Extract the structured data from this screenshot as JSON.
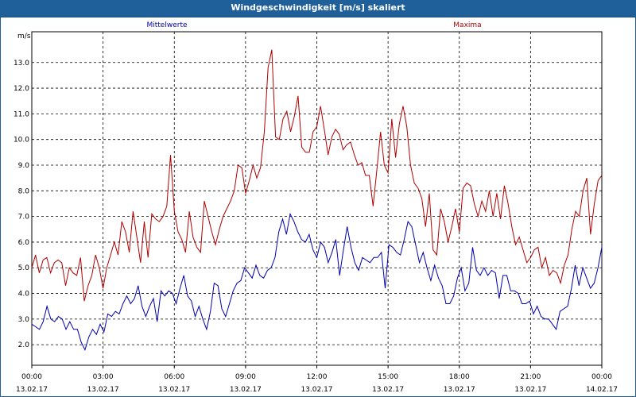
{
  "window": {
    "title": "Windgeschwindigkeit [m/s] skaliert"
  },
  "chart_data": {
    "type": "line",
    "title": "Windgeschwindigkeit [m/s] skaliert",
    "ylabel": "m/s",
    "ylim": [
      1.2,
      14.2
    ],
    "yticks": [
      2.0,
      3.0,
      4.0,
      5.0,
      6.0,
      7.0,
      8.0,
      9.0,
      10.0,
      11.0,
      12.0,
      13.0
    ],
    "xlim": [
      0,
      24
    ],
    "x_ticks": [
      {
        "time": "00:00",
        "date": "13.02.17"
      },
      {
        "time": "03:00",
        "date": "13.02.17"
      },
      {
        "time": "06:00",
        "date": "13.02.17"
      },
      {
        "time": "09:00",
        "date": "13.02.17"
      },
      {
        "time": "12:00",
        "date": "13.02.17"
      },
      {
        "time": "15:00",
        "date": "13.02.17"
      },
      {
        "time": "18:00",
        "date": "13.02.17"
      },
      {
        "time": "21:00",
        "date": "13.02.17"
      },
      {
        "time": "00:00",
        "date": "14.02.17"
      }
    ],
    "grid": true,
    "series": [
      {
        "name": "Mittelwerte",
        "color": "#0000b0",
        "values": [
          2.8,
          2.7,
          2.6,
          2.9,
          3.5,
          3.0,
          2.9,
          3.1,
          3.0,
          2.6,
          2.9,
          2.6,
          2.6,
          2.1,
          1.8,
          2.3,
          2.6,
          2.4,
          2.8,
          2.5,
          3.2,
          3.1,
          3.3,
          3.2,
          3.6,
          3.9,
          3.6,
          3.8,
          4.3,
          3.5,
          3.1,
          3.5,
          3.8,
          2.9,
          4.1,
          3.9,
          4.1,
          4.0,
          3.6,
          4.2,
          4.7,
          3.9,
          3.7,
          3.1,
          3.5,
          3.0,
          2.6,
          3.3,
          4.4,
          4.3,
          3.4,
          3.1,
          3.6,
          4.1,
          4.4,
          4.5,
          5.0,
          4.8,
          4.6,
          5.1,
          4.7,
          4.6,
          4.9,
          5.0,
          5.4,
          6.4,
          6.9,
          6.3,
          7.1,
          6.8,
          6.4,
          6.1,
          6.0,
          6.3,
          5.7,
          5.4,
          6.0,
          5.8,
          5.2,
          5.6,
          6.1,
          4.7,
          5.7,
          6.6,
          5.8,
          5.2,
          4.9,
          5.4,
          5.3,
          5.2,
          5.4,
          5.4,
          5.6,
          4.2,
          5.9,
          5.8,
          5.6,
          5.5,
          6.1,
          6.8,
          6.6,
          5.9,
          5.2,
          5.6,
          5.0,
          4.5,
          5.1,
          4.6,
          4.3,
          3.6,
          3.6,
          3.9,
          4.6,
          5.0,
          4.1,
          4.4,
          5.8,
          4.9,
          4.7,
          5.0,
          4.7,
          4.9,
          4.8,
          3.8,
          4.7,
          4.7,
          4.1,
          4.1,
          4.0,
          3.6,
          3.6,
          3.7,
          3.2,
          3.5,
          3.1,
          3.0,
          3.0,
          2.8,
          2.6,
          3.3,
          3.4,
          3.5,
          4.2,
          5.1,
          4.3,
          5.0,
          4.6,
          4.2,
          4.4,
          5.0,
          5.8
        ]
      },
      {
        "name": "Maxima",
        "color": "#b00000",
        "values": [
          5.0,
          5.5,
          4.8,
          5.3,
          5.4,
          4.8,
          5.2,
          5.3,
          5.2,
          4.3,
          5.0,
          4.8,
          4.7,
          5.4,
          3.7,
          4.3,
          4.7,
          5.5,
          5.0,
          4.2,
          5.0,
          5.5,
          6.0,
          5.5,
          6.8,
          6.4,
          5.6,
          7.2,
          6.2,
          5.2,
          6.8,
          5.4,
          7.1,
          6.9,
          6.8,
          7.0,
          7.4,
          9.4,
          7.2,
          6.4,
          6.1,
          5.6,
          7.2,
          6.2,
          5.8,
          5.6,
          7.6,
          7.0,
          6.4,
          5.9,
          6.5,
          7.0,
          7.3,
          7.6,
          8.0,
          9.0,
          8.9,
          7.9,
          8.4,
          9.0,
          8.5,
          8.9,
          10.3,
          12.8,
          13.5,
          10.1,
          10.0,
          10.8,
          11.1,
          10.3,
          10.9,
          11.7,
          9.7,
          9.5,
          9.5,
          10.3,
          10.5,
          11.3,
          10.4,
          9.4,
          10.1,
          10.4,
          10.2,
          9.6,
          9.8,
          9.9,
          9.4,
          9.0,
          9.1,
          8.6,
          8.6,
          7.4,
          8.8,
          10.3,
          9.0,
          8.7,
          10.8,
          9.3,
          10.6,
          11.3,
          10.5,
          9.0,
          8.3,
          8.1,
          7.7,
          6.6,
          7.9,
          5.7,
          5.5,
          7.3,
          6.8,
          6.0,
          6.6,
          7.3,
          6.4,
          8.1,
          8.3,
          8.2,
          7.5,
          7.0,
          7.6,
          7.2,
          8.0,
          7.0,
          7.9,
          6.9,
          8.2,
          7.5,
          6.6,
          5.9,
          6.2,
          5.7,
          5.2,
          5.4,
          5.7,
          5.8,
          5.0,
          5.4,
          4.7,
          4.9,
          4.8,
          4.4,
          5.1,
          5.5,
          6.5,
          7.2,
          7.0,
          8.0,
          8.5,
          6.3,
          7.5,
          8.4,
          8.6
        ]
      }
    ]
  }
}
